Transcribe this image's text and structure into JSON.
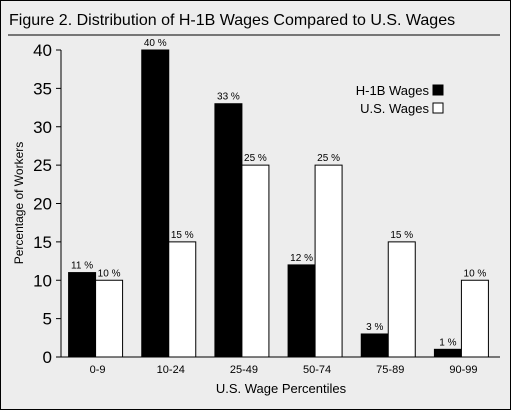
{
  "chart_data": {
    "type": "bar",
    "title": "Figure 2. Distribution of H-1B Wages Compared to U.S. Wages",
    "xlabel": "U.S. Wage Percentiles",
    "ylabel": "Percentage of Workers",
    "ylim": [
      0,
      40
    ],
    "yticks": [
      "0",
      "5",
      "10",
      "15",
      "20",
      "25",
      "30",
      "35",
      "40"
    ],
    "categories": [
      "0-9",
      "10-24",
      "25-49",
      "50-74",
      "75-89",
      "90-99"
    ],
    "series": [
      {
        "name": "H-1B Wages",
        "color": "#000000",
        "values": [
          11,
          40,
          33,
          12,
          3,
          1
        ],
        "labels": [
          "11 %",
          "40 %",
          "33 %",
          "12 %",
          "3 %",
          "1 %"
        ]
      },
      {
        "name": "U.S. Wages",
        "color": "#ffffff",
        "values": [
          10,
          15,
          25,
          25,
          15,
          10
        ],
        "labels": [
          "10 %",
          "15 %",
          "25 %",
          "25 %",
          "15 %",
          "10 %"
        ]
      }
    ],
    "legend_position": "top-right",
    "grid": false
  }
}
